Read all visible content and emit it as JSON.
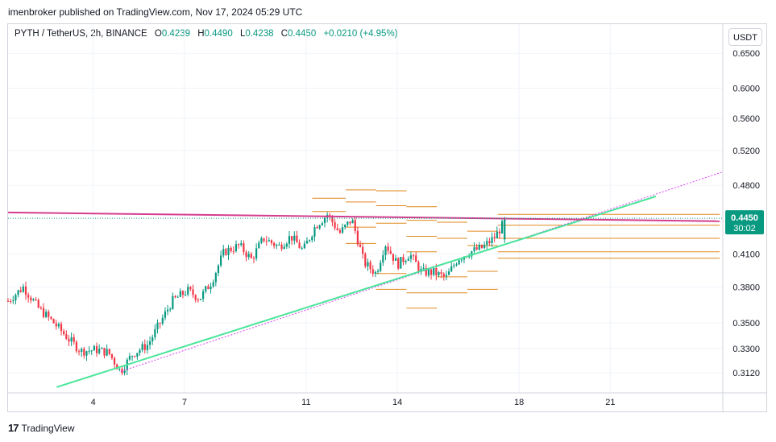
{
  "header": {
    "published": "imenbroker published on TradingView.com, Nov 17, 2024 05:29 UTC"
  },
  "legend": {
    "symbol": "PYTH / TetherUS, 2h, BINANCE",
    "open_label": "O",
    "open": "0.4239",
    "high_label": "H",
    "high": "0.4490",
    "low_label": "L",
    "low": "0.4238",
    "close_label": "C",
    "close": "0.4450",
    "change": "+0.0210 (+4.95%)"
  },
  "currency_button": "USDT",
  "footer": {
    "logo_glyph": "17",
    "brand": "TradingView"
  },
  "colors": {
    "up": "#089981",
    "down": "#f23645",
    "trendline_green": "#4ae59a",
    "trendline_magenta": "#d43d8e",
    "dotted_magenta": "#e040fb",
    "levels": "#e0891f",
    "price_tag": "#089981"
  },
  "chart_data": {
    "type": "candlestick",
    "symbol": "PYTH/USDT",
    "interval": "2h",
    "x_ticks": [
      "4",
      "7",
      "11",
      "14",
      "18",
      "21"
    ],
    "x_tick_days": [
      4,
      7,
      11,
      14,
      18,
      21
    ],
    "y_ticks": [
      "0.6500",
      "0.6000",
      "0.5600",
      "0.5200",
      "0.4800",
      "0.4100",
      "0.3800",
      "0.3500",
      "0.3300",
      "0.3120"
    ],
    "y_tick_values": [
      0.65,
      0.6,
      0.56,
      0.52,
      0.48,
      0.41,
      0.38,
      0.35,
      0.33,
      0.312
    ],
    "scale": "log",
    "y_range": [
      0.298,
      0.695
    ],
    "x_range": [
      1.2,
      24.7
    ],
    "last_price": "0.4450",
    "countdown": "30:02",
    "last_price_value": 0.445,
    "path": [
      [
        1.2,
        0.368
      ],
      [
        1.7,
        0.38
      ],
      [
        2.2,
        0.362
      ],
      [
        2.7,
        0.35
      ],
      [
        3.2,
        0.337
      ],
      [
        3.6,
        0.328
      ],
      [
        4.1,
        0.329
      ],
      [
        4.5,
        0.327
      ],
      [
        4.9,
        0.313
      ],
      [
        5.3,
        0.326
      ],
      [
        5.8,
        0.333
      ],
      [
        6.2,
        0.35
      ],
      [
        6.6,
        0.368
      ],
      [
        7.1,
        0.377
      ],
      [
        7.5,
        0.37
      ],
      [
        7.9,
        0.385
      ],
      [
        8.3,
        0.412
      ],
      [
        8.8,
        0.418
      ],
      [
        9.2,
        0.405
      ],
      [
        9.6,
        0.425
      ],
      [
        10.1,
        0.417
      ],
      [
        10.5,
        0.427
      ],
      [
        10.9,
        0.413
      ],
      [
        11.3,
        0.437
      ],
      [
        11.7,
        0.449
      ],
      [
        12.1,
        0.43
      ],
      [
        12.5,
        0.444
      ],
      [
        12.9,
        0.402
      ],
      [
        13.3,
        0.392
      ],
      [
        13.6,
        0.42
      ],
      [
        14.0,
        0.4
      ],
      [
        14.4,
        0.41
      ],
      [
        14.8,
        0.393
      ],
      [
        15.2,
        0.393
      ],
      [
        15.6,
        0.388
      ],
      [
        16.0,
        0.406
      ],
      [
        16.4,
        0.412
      ],
      [
        16.8,
        0.416
      ],
      [
        17.2,
        0.426
      ],
      [
        17.6,
        0.445
      ]
    ],
    "trendlines": [
      {
        "name": "green",
        "from": [
          2.8,
          0.302
        ],
        "to": [
          22.5,
          0.468
        ]
      },
      {
        "name": "magenta",
        "from": [
          1.2,
          0.451
        ],
        "to": [
          24.6,
          0.442
        ]
      },
      {
        "name": "dotted",
        "from": [
          4.9,
          0.313
        ],
        "to": [
          24.7,
          0.495
        ]
      }
    ],
    "horizontal_levels": [
      [
        [
          11.2,
          12.3
        ],
        0.466
      ],
      [
        [
          11.2,
          12.3
        ],
        0.452
      ],
      [
        [
          12.3,
          13.3
        ],
        0.475
      ],
      [
        [
          12.3,
          13.3
        ],
        0.462
      ],
      [
        [
          12.3,
          13.3
        ],
        0.436
      ],
      [
        [
          12.3,
          13.3
        ],
        0.42
      ],
      [
        [
          13.3,
          14.3
        ],
        0.474
      ],
      [
        [
          13.3,
          14.3
        ],
        0.458
      ],
      [
        [
          13.3,
          14.3
        ],
        0.44
      ],
      [
        [
          13.3,
          14.3
        ],
        0.392
      ],
      [
        [
          13.3,
          14.3
        ],
        0.378
      ],
      [
        [
          14.3,
          15.3
        ],
        0.457
      ],
      [
        [
          14.3,
          15.3
        ],
        0.443
      ],
      [
        [
          14.3,
          15.3
        ],
        0.427
      ],
      [
        [
          14.3,
          15.3
        ],
        0.412
      ],
      [
        [
          14.3,
          15.3
        ],
        0.375
      ],
      [
        [
          14.3,
          15.3
        ],
        0.362
      ],
      [
        [
          15.3,
          16.3
        ],
        0.441
      ],
      [
        [
          15.3,
          16.3
        ],
        0.425
      ],
      [
        [
          15.3,
          16.3
        ],
        0.389
      ],
      [
        [
          15.3,
          16.3
        ],
        0.375
      ],
      [
        [
          16.3,
          17.3
        ],
        0.432
      ],
      [
        [
          16.3,
          17.3
        ],
        0.418
      ],
      [
        [
          16.3,
          17.3
        ],
        0.394
      ],
      [
        [
          16.3,
          17.3
        ],
        0.378
      ],
      [
        [
          17.3,
          24.6
        ],
        0.449
      ],
      [
        [
          17.3,
          24.6
        ],
        0.438
      ],
      [
        [
          17.3,
          24.6
        ],
        0.425
      ],
      [
        [
          17.3,
          24.6
        ],
        0.412
      ],
      [
        [
          17.3,
          24.6
        ],
        0.406
      ]
    ]
  }
}
